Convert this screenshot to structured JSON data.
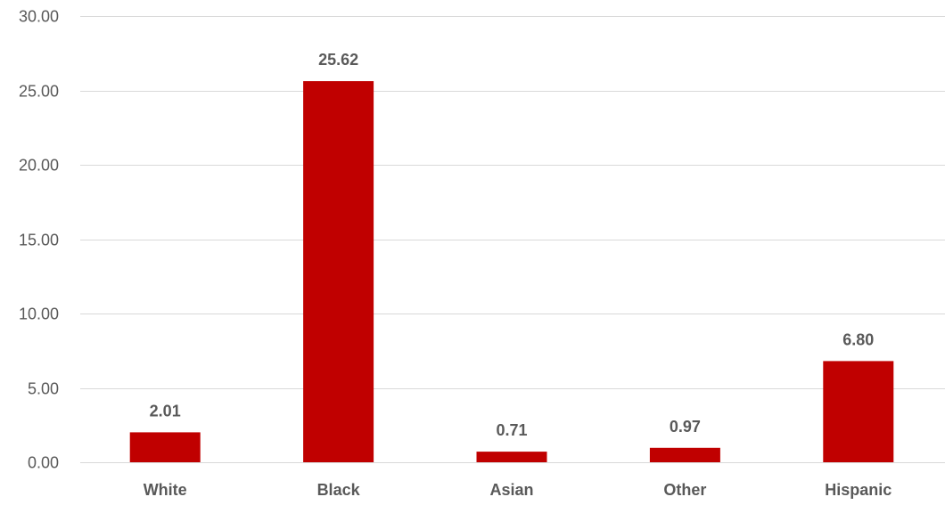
{
  "chart_data": {
    "type": "bar",
    "title": "",
    "xlabel": "",
    "ylabel": "",
    "categories": [
      "White",
      "Black",
      "Asian",
      "Other",
      "Hispanic"
    ],
    "values": [
      2.01,
      25.62,
      0.71,
      0.97,
      6.8
    ],
    "value_labels": [
      "2.01",
      "25.62",
      "0.71",
      "0.97",
      "6.80"
    ],
    "ylim": [
      0,
      30
    ],
    "y_ticks": [
      0,
      5,
      10,
      15,
      20,
      25,
      30
    ],
    "y_tick_labels": [
      "0.00",
      "5.00",
      "10.00",
      "15.00",
      "20.00",
      "25.00",
      "30.00"
    ],
    "grid": true,
    "legend": "none",
    "colors": {
      "bar": "#c00000",
      "gridline": "#d9d9d9",
      "text": "#595959"
    }
  }
}
